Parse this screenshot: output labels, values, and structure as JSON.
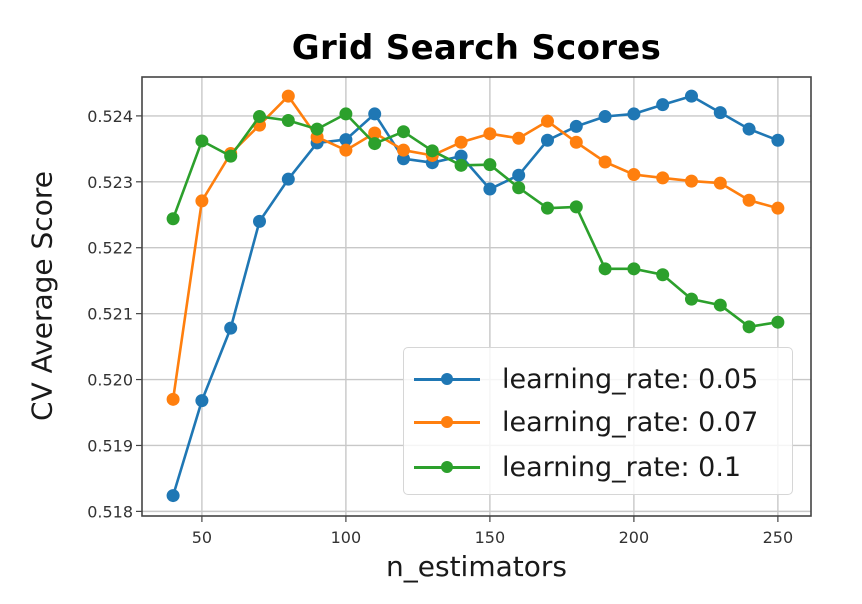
{
  "chart_data": {
    "type": "line",
    "title": "Grid Search Scores",
    "xlabel": "n_estimators",
    "ylabel": "CV Average Score",
    "xlim": [
      29.2,
      261.5
    ],
    "ylim": [
      0.51793,
      0.52459
    ],
    "xticks": [
      50,
      100,
      150,
      200,
      250
    ],
    "xtick_labels": [
      "50",
      "100",
      "150",
      "200",
      "250"
    ],
    "yticks": [
      0.518,
      0.519,
      0.52,
      0.521,
      0.522,
      0.523,
      0.524
    ],
    "ytick_labels": [
      "0.518",
      "0.519",
      "0.520",
      "0.521",
      "0.522",
      "0.523",
      "0.524"
    ],
    "grid": true,
    "legend_position": "lower right",
    "x": [
      40,
      50,
      60,
      70,
      80,
      90,
      100,
      110,
      120,
      130,
      140,
      150,
      160,
      170,
      180,
      190,
      200,
      210,
      220,
      230,
      240,
      250
    ],
    "series": [
      {
        "name": "learning_rate: 0.05",
        "color": "#1f77b4",
        "values": [
          0.51824,
          0.51968,
          0.52078,
          0.5224,
          0.52304,
          0.52359,
          0.52364,
          0.52403,
          0.52335,
          0.52329,
          0.52339,
          0.52289,
          0.5231,
          0.52363,
          0.52384,
          0.52399,
          0.52403,
          0.52417,
          0.5243,
          0.52405,
          0.5238,
          0.52363
        ]
      },
      {
        "name": "learning_rate: 0.07",
        "color": "#ff7f0e",
        "values": [
          0.5197,
          0.52271,
          0.52343,
          0.52386,
          0.5243,
          0.52368,
          0.52348,
          0.52374,
          0.52348,
          0.5234,
          0.5236,
          0.52373,
          0.52366,
          0.52392,
          0.5236,
          0.5233,
          0.52311,
          0.52306,
          0.52301,
          0.52298,
          0.52272,
          0.5226
        ]
      },
      {
        "name": "learning_rate: 0.1",
        "color": "#2ca02c",
        "values": [
          0.52244,
          0.52362,
          0.52339,
          0.52399,
          0.52393,
          0.5238,
          0.52403,
          0.52358,
          0.52376,
          0.52347,
          0.52325,
          0.52326,
          0.52291,
          0.5226,
          0.52262,
          0.52168,
          0.52168,
          0.52159,
          0.52122,
          0.52113,
          0.5208,
          0.52087
        ]
      }
    ]
  },
  "legend": {
    "items": [
      {
        "label": "learning_rate: 0.05",
        "color": "#1f77b4"
      },
      {
        "label": "learning_rate: 0.07",
        "color": "#ff7f0e"
      },
      {
        "label": "learning_rate: 0.1",
        "color": "#2ca02c"
      }
    ]
  }
}
